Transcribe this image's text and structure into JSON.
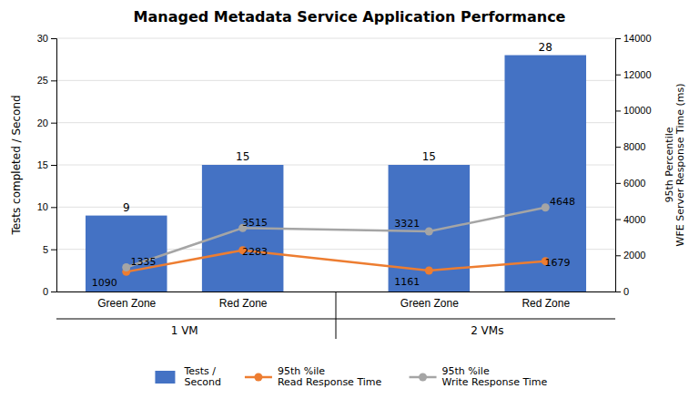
{
  "chart_data": {
    "type": "bar",
    "title": "Managed Metadata Service Application Performance",
    "categories": [
      "Green Zone",
      "Red Zone",
      "Green Zone",
      "Red Zone"
    ],
    "group_labels": [
      "1 VM",
      "2 VMs"
    ],
    "ylabel": "Tests completed / Second",
    "y2label": "95th Percentile\nWFE Server Response Time (ms)",
    "series": [
      {
        "name": "Tests /\nSecond",
        "type": "bar",
        "color": "#4472C4",
        "values": [
          9,
          15,
          15,
          28
        ]
      },
      {
        "name": "95th %ile\nRead Response Time",
        "type": "line",
        "axis": "y2",
        "marker": "circle",
        "color": "#ED7D31",
        "values": [
          1090,
          2283,
          1161,
          1679
        ]
      },
      {
        "name": "95th %ile\nWrite Response Time",
        "type": "line",
        "axis": "y2",
        "marker": "circle",
        "color": "#A5A5A5",
        "values": [
          1335,
          3515,
          3321,
          4648
        ]
      }
    ],
    "ylim": [
      0,
      30
    ],
    "yticks": [
      0,
      5,
      10,
      15,
      20,
      25,
      30
    ],
    "y2lim": [
      0,
      14000
    ],
    "y2ticks": [
      0,
      2000,
      4000,
      6000,
      8000,
      10000,
      12000,
      14000
    ],
    "grid": true,
    "legend": "bottom",
    "data_labels": true
  }
}
